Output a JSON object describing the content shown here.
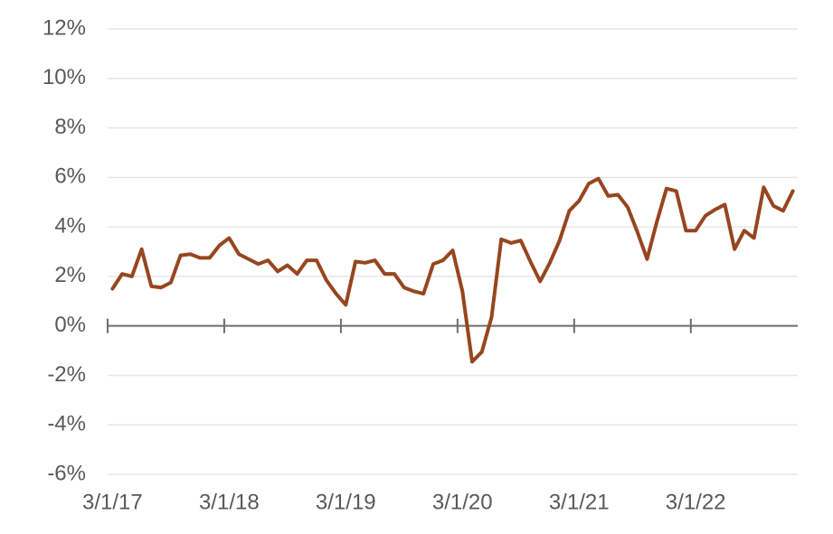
{
  "chart_data": {
    "type": "line",
    "categories": [
      "3/1/17",
      null,
      null,
      null,
      null,
      null,
      null,
      null,
      null,
      null,
      null,
      null,
      "3/1/18",
      null,
      null,
      null,
      null,
      null,
      null,
      null,
      null,
      null,
      null,
      null,
      "3/1/19",
      null,
      null,
      null,
      null,
      null,
      null,
      null,
      null,
      null,
      null,
      null,
      "3/1/20",
      null,
      null,
      null,
      null,
      null,
      null,
      null,
      null,
      null,
      null,
      null,
      "3/1/21",
      null,
      null,
      null,
      null,
      null,
      null,
      null,
      null,
      null,
      null,
      null,
      "3/1/22",
      null,
      null,
      null,
      null,
      null,
      null,
      null,
      null,
      null,
      null
    ],
    "series": [
      {
        "color": "#96461f",
        "values": [
          1.5,
          2.1,
          2.0,
          3.1,
          1.6,
          1.55,
          1.75,
          2.85,
          2.9,
          2.75,
          2.75,
          3.25,
          3.55,
          2.9,
          2.7,
          2.5,
          2.65,
          2.2,
          2.45,
          2.1,
          2.65,
          2.65,
          1.85,
          1.3,
          0.85,
          2.6,
          2.55,
          2.65,
          2.1,
          2.1,
          1.55,
          1.4,
          1.3,
          2.5,
          2.65,
          3.05,
          1.4,
          -1.45,
          -1.05,
          0.35,
          3.5,
          3.35,
          3.45,
          2.6,
          1.8,
          2.55,
          3.45,
          4.65,
          5.05,
          5.75,
          5.95,
          5.25,
          5.3,
          4.8,
          3.8,
          2.7,
          4.2,
          5.55,
          5.45,
          3.85,
          3.85,
          4.45,
          4.7,
          4.9,
          3.1,
          3.85,
          3.55,
          5.6,
          4.85,
          4.65,
          5.45
        ]
      }
    ],
    "ylim": [
      -6,
      12
    ],
    "yticks": [
      {
        "value": -6,
        "label": "-6%"
      },
      {
        "value": -4,
        "label": "-4%"
      },
      {
        "value": -2,
        "label": "-2%"
      },
      {
        "value": 0,
        "label": "0%"
      },
      {
        "value": 2,
        "label": "2%"
      },
      {
        "value": 4,
        "label": "4%"
      },
      {
        "value": 6,
        "label": "6%"
      },
      {
        "value": 8,
        "label": "8%"
      },
      {
        "value": 10,
        "label": "10%"
      },
      {
        "value": 12,
        "label": "12%"
      }
    ],
    "grid": true
  }
}
